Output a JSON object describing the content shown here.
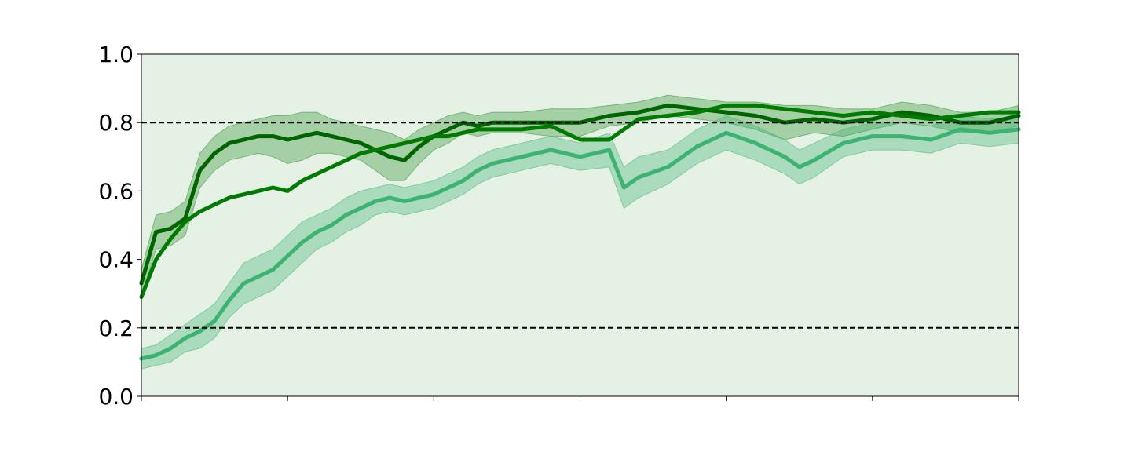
{
  "chart_data": {
    "type": "line",
    "title": "",
    "xlabel": "",
    "ylabel": "",
    "xlim": [
      0,
      300
    ],
    "ylim": [
      0.0,
      1.0
    ],
    "x_tick_count": 7,
    "y_ticks": [
      "0.0",
      "0.2",
      "0.4",
      "0.6",
      "0.8",
      "1.0"
    ],
    "x_ticks": [
      "",
      "",
      "",
      "",
      "",
      "",
      ""
    ],
    "background_color": "#e5f1e5",
    "grid": false,
    "reference_lines": [
      0.2,
      0.8
    ],
    "series": [
      {
        "color": "#006400",
        "band_color": "#2f8f2f",
        "x": [
          0,
          5,
          10,
          15,
          20,
          25,
          30,
          40,
          45,
          50,
          55,
          60,
          65,
          70,
          75,
          80,
          85,
          90,
          95,
          100,
          105,
          110,
          115,
          120,
          130,
          140,
          150,
          160,
          170,
          180,
          190,
          200,
          210,
          220,
          230,
          240,
          250,
          260,
          270,
          280,
          290,
          300
        ],
        "mean": [
          0.33,
          0.48,
          0.49,
          0.52,
          0.66,
          0.71,
          0.74,
          0.76,
          0.76,
          0.75,
          0.76,
          0.77,
          0.76,
          0.75,
          0.74,
          0.72,
          0.7,
          0.69,
          0.73,
          0.76,
          0.78,
          0.8,
          0.79,
          0.8,
          0.8,
          0.8,
          0.8,
          0.82,
          0.83,
          0.85,
          0.84,
          0.83,
          0.82,
          0.8,
          0.81,
          0.8,
          0.81,
          0.83,
          0.82,
          0.8,
          0.8,
          0.82
        ],
        "spread": [
          0.04,
          0.05,
          0.05,
          0.05,
          0.05,
          0.05,
          0.05,
          0.05,
          0.06,
          0.07,
          0.07,
          0.06,
          0.05,
          0.05,
          0.05,
          0.06,
          0.07,
          0.06,
          0.05,
          0.04,
          0.04,
          0.03,
          0.03,
          0.03,
          0.03,
          0.04,
          0.04,
          0.03,
          0.03,
          0.03,
          0.03,
          0.03,
          0.04,
          0.05,
          0.04,
          0.04,
          0.03,
          0.03,
          0.03,
          0.03,
          0.03,
          0.03
        ]
      },
      {
        "color": "#007a00",
        "band_color": "#3a9a3a",
        "x": [
          0,
          5,
          10,
          15,
          20,
          25,
          30,
          40,
          45,
          50,
          55,
          60,
          65,
          70,
          75,
          80,
          85,
          90,
          95,
          100,
          105,
          110,
          115,
          120,
          130,
          140,
          150,
          160,
          170,
          180,
          190,
          200,
          210,
          220,
          230,
          240,
          250,
          260,
          270,
          280,
          290,
          300
        ],
        "mean": [
          0.29,
          0.4,
          0.46,
          0.51,
          0.54,
          0.56,
          0.58,
          0.6,
          0.61,
          0.6,
          0.63,
          0.65,
          0.67,
          0.69,
          0.71,
          0.72,
          0.73,
          0.74,
          0.75,
          0.76,
          0.76,
          0.77,
          0.78,
          0.78,
          0.78,
          0.79,
          0.75,
          0.75,
          0.81,
          0.82,
          0.83,
          0.85,
          0.85,
          0.84,
          0.83,
          0.82,
          0.83,
          0.82,
          0.81,
          0.82,
          0.83,
          0.83
        ]
      },
      {
        "color": "#3cb371",
        "band_color": "#3cb371",
        "x": [
          0,
          5,
          10,
          15,
          20,
          25,
          30,
          35,
          40,
          45,
          50,
          55,
          60,
          65,
          70,
          75,
          80,
          85,
          90,
          95,
          100,
          105,
          110,
          115,
          120,
          130,
          140,
          150,
          160,
          165,
          170,
          180,
          190,
          200,
          210,
          220,
          225,
          230,
          240,
          250,
          260,
          270,
          280,
          290,
          300
        ],
        "mean": [
          0.11,
          0.12,
          0.14,
          0.17,
          0.19,
          0.22,
          0.28,
          0.33,
          0.35,
          0.37,
          0.41,
          0.45,
          0.48,
          0.5,
          0.53,
          0.55,
          0.57,
          0.58,
          0.57,
          0.58,
          0.59,
          0.61,
          0.63,
          0.66,
          0.68,
          0.7,
          0.72,
          0.7,
          0.72,
          0.61,
          0.64,
          0.67,
          0.73,
          0.77,
          0.74,
          0.7,
          0.67,
          0.69,
          0.74,
          0.76,
          0.76,
          0.75,
          0.78,
          0.77,
          0.78
        ],
        "spread": [
          0.03,
          0.03,
          0.04,
          0.04,
          0.05,
          0.05,
          0.05,
          0.06,
          0.06,
          0.06,
          0.06,
          0.06,
          0.05,
          0.05,
          0.05,
          0.05,
          0.04,
          0.04,
          0.04,
          0.04,
          0.04,
          0.04,
          0.04,
          0.04,
          0.04,
          0.04,
          0.04,
          0.04,
          0.05,
          0.06,
          0.06,
          0.05,
          0.05,
          0.05,
          0.05,
          0.05,
          0.05,
          0.05,
          0.04,
          0.04,
          0.04,
          0.04,
          0.04,
          0.04,
          0.04
        ]
      }
    ]
  }
}
